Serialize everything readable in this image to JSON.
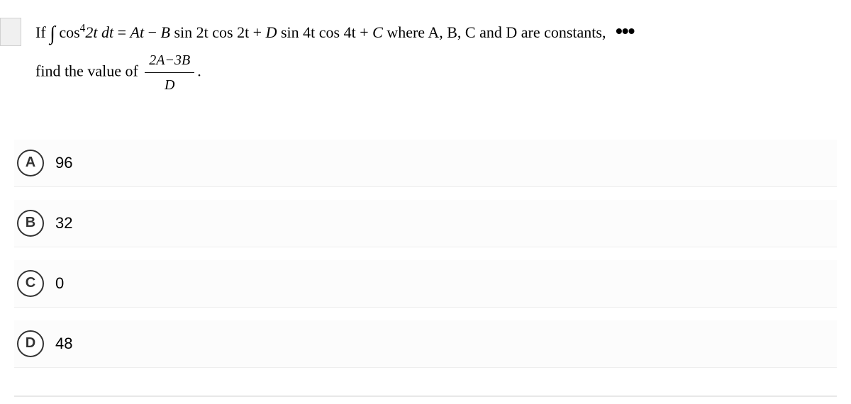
{
  "question": {
    "line1_prefix": "If  ",
    "integral_expr": "cos",
    "cos_exp": "4",
    "cos_arg": "2t dt",
    "equals": " = ",
    "rhs_part1": "At",
    "minus": " − ",
    "rhs_part2": "B",
    "rhs_part3": " sin 2t cos 2t + ",
    "rhs_part4": "D",
    "rhs_part5": " sin 4t cos 4t + ",
    "rhs_part6": "C",
    "where_text": "  where A, B, C and D are constants,",
    "line2_prefix": "find the value of ",
    "frac_num": "2A−3B",
    "frac_den": "D",
    "period": "."
  },
  "options": [
    {
      "letter": "A",
      "text": "96"
    },
    {
      "letter": "B",
      "text": "32"
    },
    {
      "letter": "C",
      "text": "0"
    },
    {
      "letter": "D",
      "text": "48"
    }
  ],
  "more_icon": "•••"
}
